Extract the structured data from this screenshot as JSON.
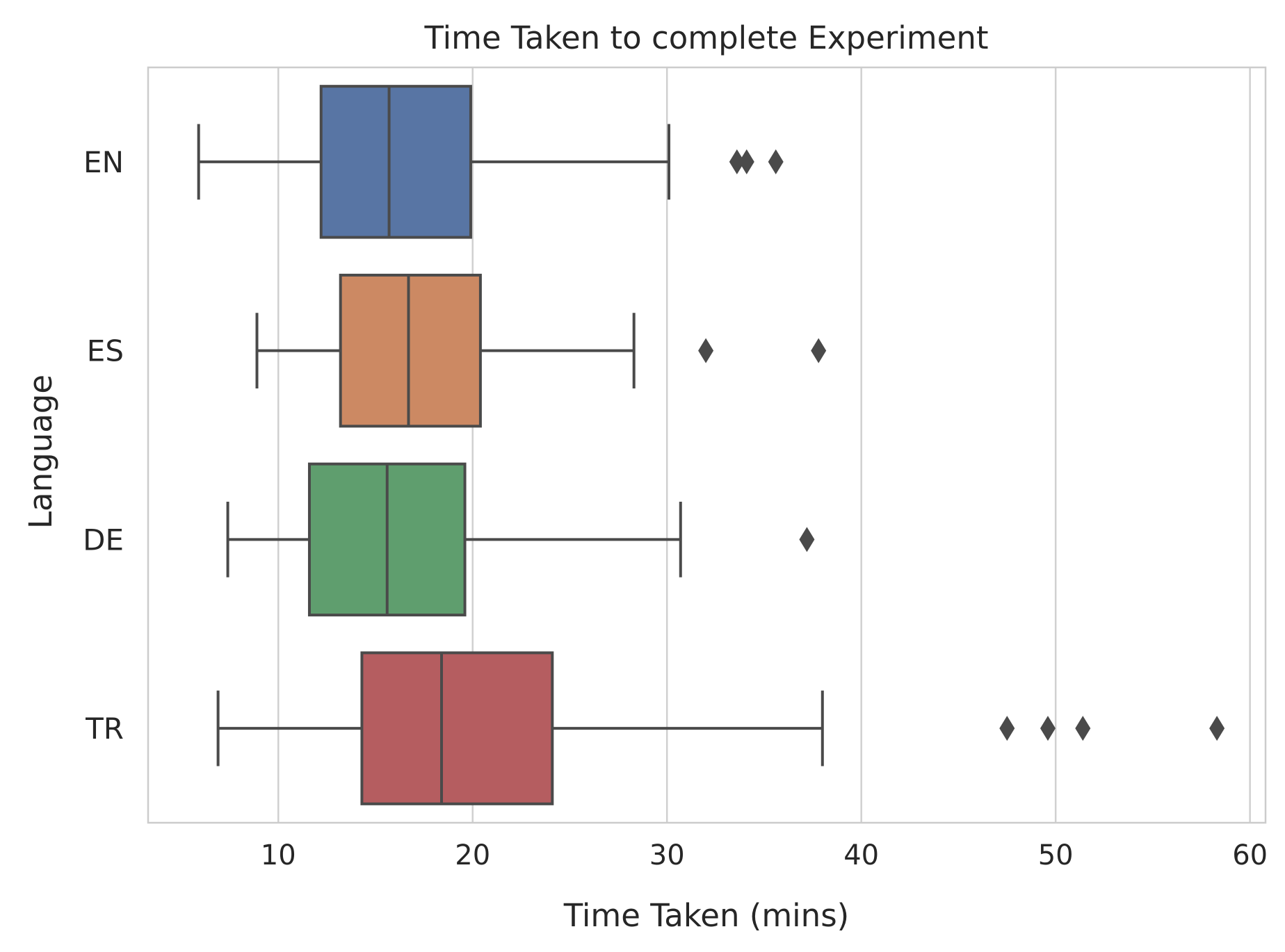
{
  "chart_data": {
    "type": "box",
    "orientation": "horizontal",
    "title": "Time Taken to complete Experiment",
    "xlabel": "Time Taken (mins)",
    "ylabel": "Language",
    "xlim": [
      3.3,
      60.8
    ],
    "xticks": [
      10,
      20,
      30,
      40,
      50,
      60
    ],
    "grid": "vertical",
    "categories": [
      "EN",
      "ES",
      "DE",
      "TR"
    ],
    "series": [
      {
        "label": "EN",
        "color": "#5875a4",
        "whisker_low": 5.9,
        "q1": 12.2,
        "median": 15.7,
        "q3": 19.9,
        "whisker_high": 30.1,
        "outliers": [
          33.6,
          34.1,
          35.6
        ]
      },
      {
        "label": "ES",
        "color": "#cc8963",
        "whisker_low": 8.9,
        "q1": 13.2,
        "median": 16.7,
        "q3": 20.4,
        "whisker_high": 28.3,
        "outliers": [
          32.0,
          37.8
        ]
      },
      {
        "label": "DE",
        "color": "#5f9e6e",
        "whisker_low": 7.4,
        "q1": 11.6,
        "median": 15.6,
        "q3": 19.6,
        "whisker_high": 30.7,
        "outliers": [
          37.2
        ]
      },
      {
        "label": "TR",
        "color": "#b55d60",
        "whisker_low": 6.9,
        "q1": 14.3,
        "median": 18.4,
        "q3": 24.1,
        "whisker_high": 38.0,
        "outliers": [
          47.5,
          49.6,
          51.4,
          58.3
        ]
      }
    ],
    "colors": {
      "line": "#4a4a4a",
      "grid": "#d0d0d0",
      "frame": "#cccccc"
    }
  }
}
